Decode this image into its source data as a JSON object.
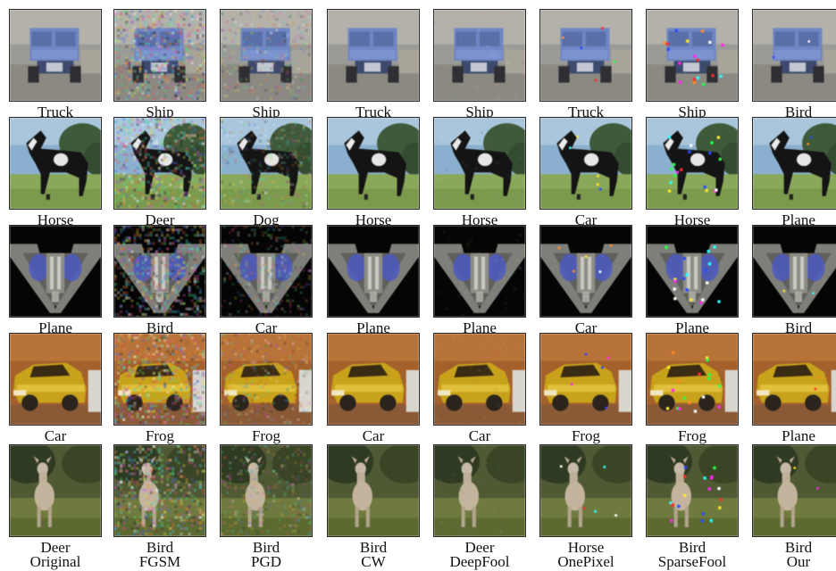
{
  "methods": [
    "Original",
    "FGSM",
    "PGD",
    "CW",
    "DeepFool",
    "OnePixel",
    "SparseFool",
    "Our"
  ],
  "rows": [
    {
      "subject": "truck",
      "labels": [
        "Truck",
        "Ship",
        "Ship",
        "Truck",
        "Ship",
        "Truck",
        "Ship",
        "Bird"
      ]
    },
    {
      "subject": "horse",
      "labels": [
        "Horse",
        "Deer",
        "Dog",
        "Horse",
        "Horse",
        "Car",
        "Horse",
        "Plane"
      ]
    },
    {
      "subject": "plane",
      "labels": [
        "Plane",
        "Bird",
        "Car",
        "Plane",
        "Plane",
        "Car",
        "Plane",
        "Bird"
      ]
    },
    {
      "subject": "car",
      "labels": [
        "Car",
        "Frog",
        "Frog",
        "Car",
        "Car",
        "Frog",
        "Frog",
        "Plane"
      ]
    },
    {
      "subject": "deer",
      "labels": [
        "Deer",
        "Bird",
        "Bird",
        "Bird",
        "Deer",
        "Horse",
        "Bird",
        "Bird"
      ]
    }
  ]
}
